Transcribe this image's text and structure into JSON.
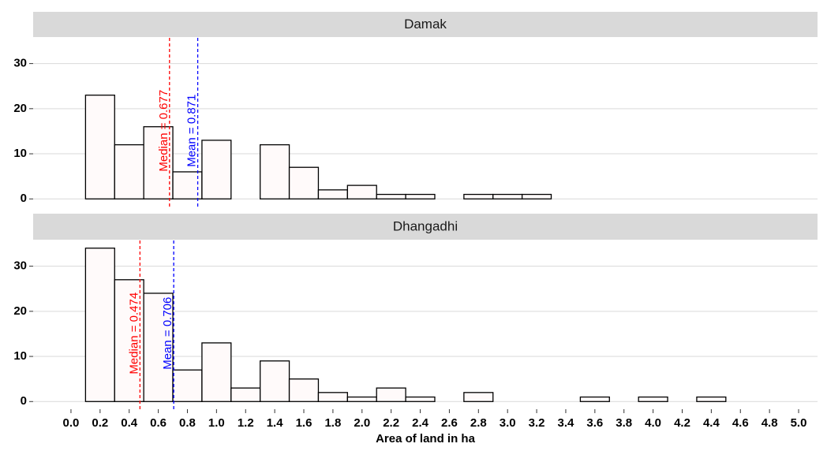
{
  "chart_data": [
    {
      "type": "histogram",
      "title": "Damak",
      "bins": [
        0.1,
        0.3,
        0.5,
        0.7,
        0.9,
        1.1,
        1.3,
        1.5,
        1.7,
        1.9,
        2.1,
        2.3,
        2.5,
        2.7,
        2.9,
        3.1,
        3.3,
        3.5,
        3.7,
        3.9,
        4.1,
        4.3,
        4.5,
        4.7,
        4.9
      ],
      "counts": [
        23,
        12,
        16,
        6,
        13,
        0,
        12,
        7,
        2,
        3,
        1,
        1,
        0,
        1,
        1,
        1,
        0,
        0,
        0,
        0,
        0,
        0,
        0,
        0
      ],
      "color": "#fffafa",
      "xlim": [
        -0.26,
        5.13
      ],
      "ylim": [
        -1.7,
        35.7
      ],
      "yticks": [
        0,
        10,
        20,
        30
      ],
      "grid": true,
      "vlines": [
        {
          "x": 0.677,
          "label": "Median = 0.677",
          "color": "#ff0000"
        },
        {
          "x": 0.871,
          "label": "Mean = 0.871",
          "color": "#0000ff"
        }
      ]
    },
    {
      "type": "histogram",
      "title": "Dhangadhi",
      "bins": [
        0.1,
        0.3,
        0.5,
        0.7,
        0.9,
        1.1,
        1.3,
        1.5,
        1.7,
        1.9,
        2.1,
        2.3,
        2.5,
        2.7,
        2.9,
        3.1,
        3.3,
        3.5,
        3.7,
        3.9,
        4.1,
        4.3,
        4.5,
        4.7,
        4.9
      ],
      "counts": [
        34,
        27,
        24,
        7,
        13,
        3,
        9,
        5,
        2,
        1,
        3,
        1,
        0,
        2,
        0,
        0,
        0,
        1,
        0,
        1,
        0,
        1,
        0,
        0
      ],
      "color": "#fffafa",
      "xlim": [
        -0.26,
        5.13
      ],
      "ylim": [
        -1.7,
        35.7
      ],
      "yticks": [
        0,
        10,
        20,
        30
      ],
      "grid": true,
      "vlines": [
        {
          "x": 0.474,
          "label": "Median = 0.474",
          "color": "#ff0000"
        },
        {
          "x": 0.706,
          "label": "Mean = 0.706",
          "color": "#0000ff"
        }
      ],
      "xlabel": "Area of land in ha",
      "xticks": [
        {
          "value": 0,
          "label": "0.0"
        },
        0.2,
        0.4,
        0.6,
        0.8,
        {
          "value": 1,
          "label": "1.0"
        },
        1.2,
        1.4,
        1.6,
        1.8,
        {
          "value": 2,
          "label": "2.0"
        },
        2.2,
        2.4,
        2.6,
        2.8,
        {
          "value": 3,
          "label": "3.0"
        },
        3.2,
        3.4,
        3.6,
        3.8,
        {
          "value": 4,
          "label": "4.0"
        },
        4.2,
        4.4,
        4.6,
        4.8,
        {
          "value": 5,
          "label": "5.0"
        }
      ]
    }
  ]
}
